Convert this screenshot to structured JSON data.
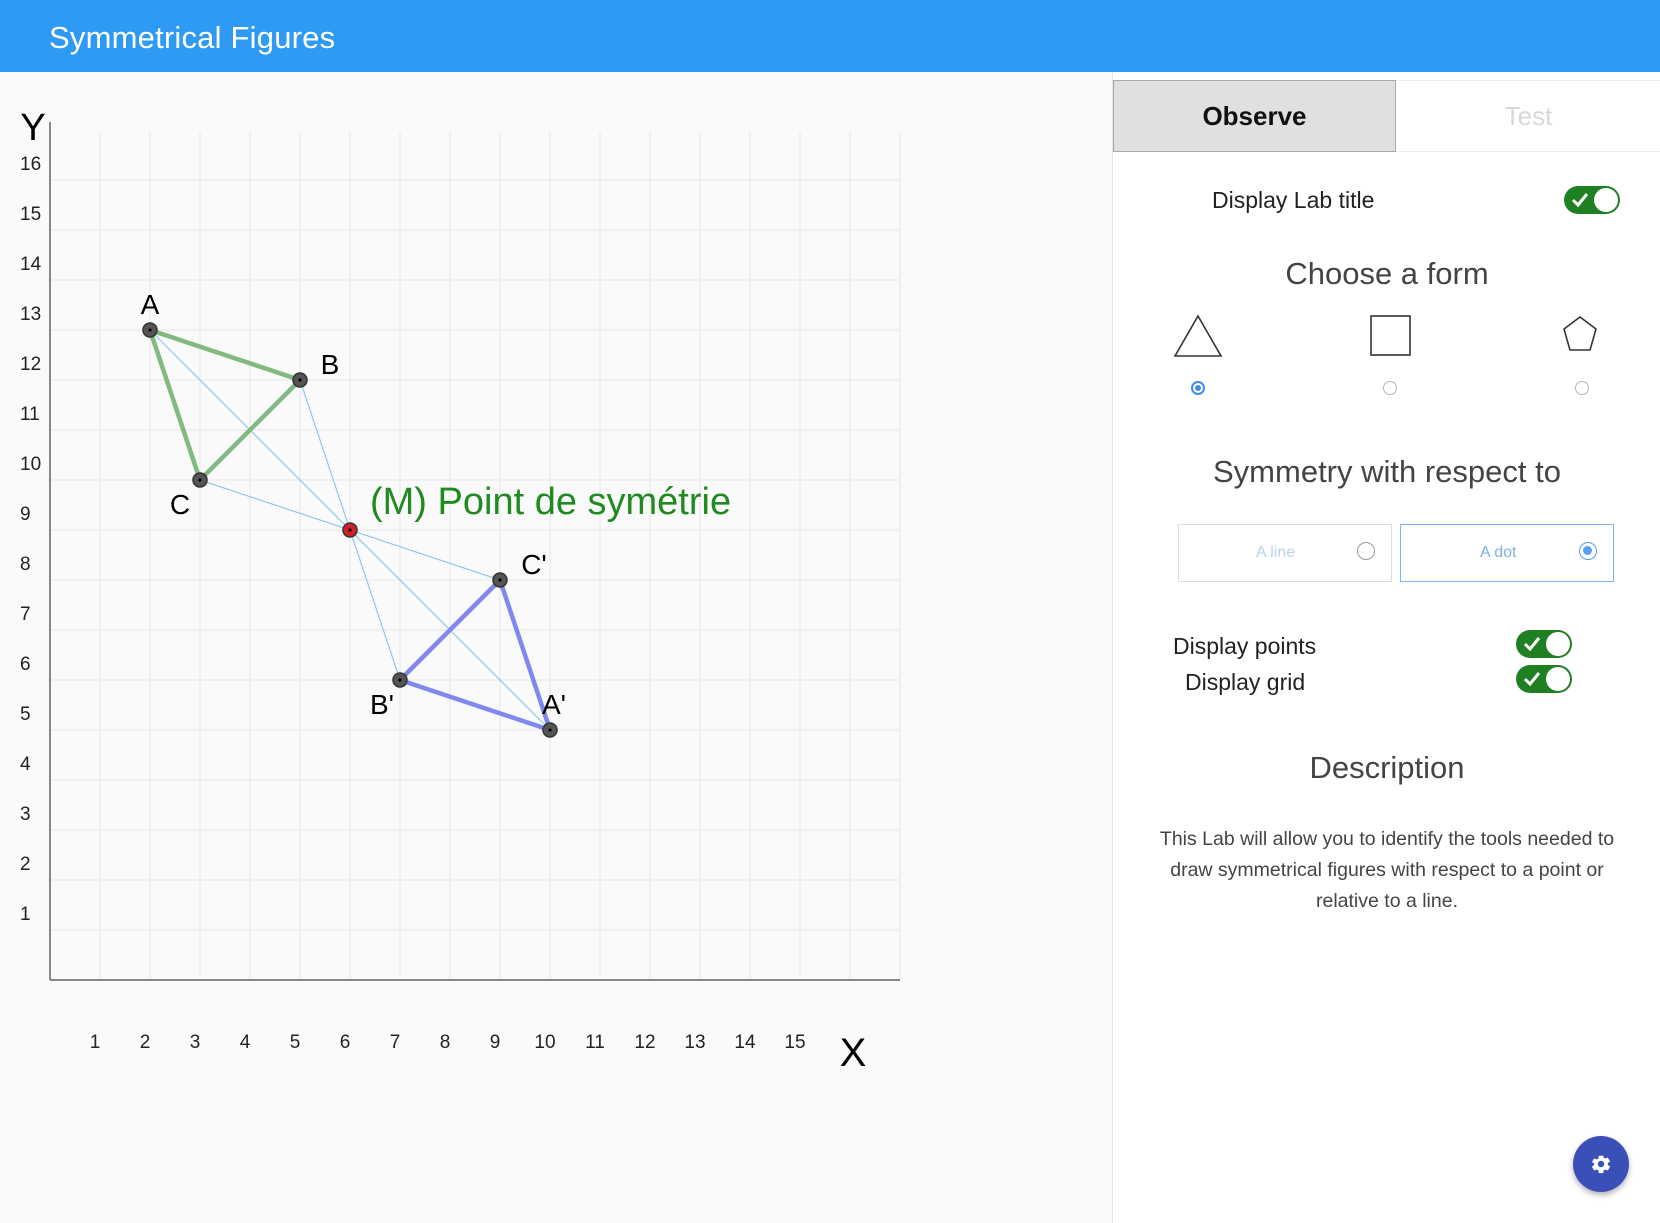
{
  "header": {
    "title": "Symmetrical Figures"
  },
  "colors": {
    "header_bg": "#2e9af3",
    "original_figure": "#7fba7f",
    "image_figure": "#8088ee",
    "construction_lines": "#90c8ee",
    "center_point": "#d0202a",
    "center_label": "#1f8a1f",
    "toggle_on": "#1e7f23",
    "fab": "#3b4fb8"
  },
  "chart_data": {
    "type": "scatter",
    "xlabel": "X",
    "ylabel": "Y",
    "x_ticks": [
      "1",
      "2",
      "3",
      "4",
      "5",
      "6",
      "7",
      "8",
      "9",
      "10",
      "11",
      "12",
      "13",
      "14",
      "15"
    ],
    "y_ticks": [
      "1",
      "2",
      "3",
      "4",
      "5",
      "6",
      "7",
      "8",
      "9",
      "10",
      "11",
      "12",
      "13",
      "14",
      "15",
      "16"
    ],
    "xlim": [
      0,
      17
    ],
    "ylim": [
      0,
      17
    ],
    "grid": true,
    "center": {
      "label": "(M) Point de symétrie",
      "x": 6,
      "y": 9
    },
    "original": [
      {
        "label": "A",
        "x": 2,
        "y": 13
      },
      {
        "label": "B",
        "x": 5,
        "y": 12
      },
      {
        "label": "C",
        "x": 3,
        "y": 10
      }
    ],
    "image": [
      {
        "label": "A'",
        "x": 10,
        "y": 5
      },
      {
        "label": "B'",
        "x": 7,
        "y": 6
      },
      {
        "label": "C'",
        "x": 9,
        "y": 8
      }
    ]
  },
  "panel": {
    "tabs": [
      {
        "label": "Observe",
        "active": true
      },
      {
        "label": "Test",
        "active": false
      }
    ],
    "display_lab_title": {
      "label": "Display Lab title",
      "on": true
    },
    "choose_form": {
      "heading": "Choose a form",
      "options": [
        {
          "shape": "triangle-icon",
          "selected": true
        },
        {
          "shape": "square-icon",
          "selected": false
        },
        {
          "shape": "pentagon-icon",
          "selected": false
        }
      ]
    },
    "symmetry": {
      "heading": "Symmetry with respect to",
      "options": [
        {
          "label": "A line",
          "selected": false
        },
        {
          "label": "A dot",
          "selected": true
        }
      ]
    },
    "display_points": {
      "label": "Display points",
      "on": true
    },
    "display_grid": {
      "label": "Display grid",
      "on": true
    },
    "description": {
      "heading": "Description",
      "text": "This Lab will allow you to identify the tools needed to draw symmetrical figures with respect to a point or relative to a line."
    }
  },
  "fab": {
    "icon": "gear-icon"
  }
}
